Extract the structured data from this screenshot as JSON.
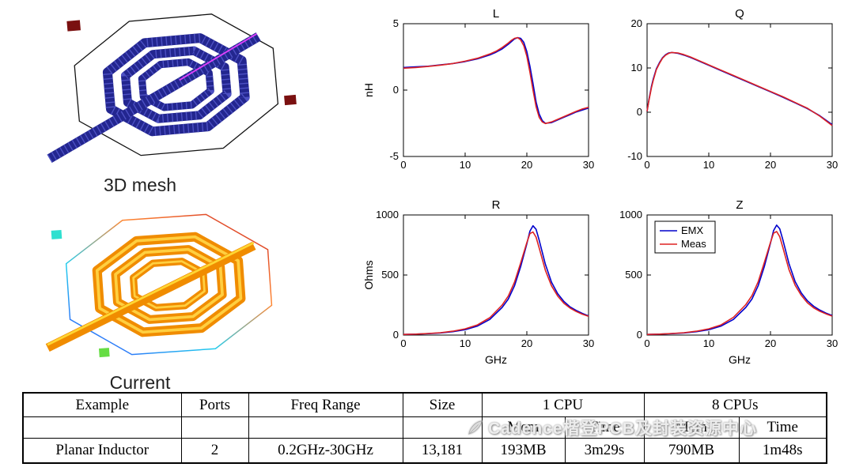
{
  "figures": {
    "mesh_label": "3D mesh",
    "current_label": "Current"
  },
  "chart_data": [
    {
      "type": "line",
      "title": "L",
      "xlabel": "",
      "ylabel": "nH",
      "xlim": [
        0,
        30
      ],
      "ylim": [
        -5,
        5
      ],
      "xticks": [
        0,
        10,
        20,
        30
      ],
      "yticks": [
        -5,
        0,
        5
      ],
      "legend": false,
      "x": [
        0,
        2,
        4,
        6,
        8,
        10,
        12,
        14,
        15,
        16,
        17,
        17.5,
        18,
        18.5,
        19,
        19.5,
        20,
        20.5,
        21,
        21.5,
        22,
        22.5,
        23,
        24,
        25,
        26,
        27,
        28,
        29,
        30
      ],
      "series": [
        {
          "name": "EMX",
          "color": "#0000cc",
          "y": [
            1.7,
            1.75,
            1.8,
            1.9,
            2.0,
            2.15,
            2.35,
            2.65,
            2.85,
            3.1,
            3.45,
            3.65,
            3.85,
            3.95,
            3.9,
            3.6,
            2.9,
            1.8,
            0.5,
            -0.9,
            -1.8,
            -2.3,
            -2.5,
            -2.45,
            -2.25,
            -2.05,
            -1.85,
            -1.65,
            -1.5,
            -1.35
          ]
        },
        {
          "name": "Meas",
          "color": "#dd2222",
          "y": [
            1.65,
            1.7,
            1.78,
            1.88,
            2.0,
            2.18,
            2.4,
            2.72,
            2.92,
            3.2,
            3.55,
            3.75,
            3.9,
            3.95,
            3.78,
            3.35,
            2.55,
            1.35,
            0.0,
            -1.25,
            -2.05,
            -2.4,
            -2.52,
            -2.4,
            -2.2,
            -2.0,
            -1.8,
            -1.6,
            -1.42,
            -1.3
          ]
        }
      ]
    },
    {
      "type": "line",
      "title": "Q",
      "xlabel": "",
      "ylabel": "",
      "xlim": [
        0,
        30
      ],
      "ylim": [
        -10,
        20
      ],
      "xticks": [
        0,
        10,
        20,
        30
      ],
      "yticks": [
        -10,
        0,
        10,
        20
      ],
      "legend": false,
      "x": [
        0,
        0.3,
        0.7,
        1,
        1.5,
        2,
        2.5,
        3,
        3.5,
        4,
        5,
        6,
        7,
        8,
        9,
        10,
        12,
        14,
        16,
        18,
        20,
        22,
        24,
        26,
        28,
        30
      ],
      "series": [
        {
          "name": "EMX",
          "color": "#0000cc",
          "y": [
            0.2,
            2.8,
            5.8,
            7.5,
            9.8,
            11.2,
            12.3,
            13.0,
            13.4,
            13.5,
            13.3,
            12.9,
            12.4,
            11.8,
            11.2,
            10.6,
            9.4,
            8.2,
            7.0,
            5.8,
            4.6,
            3.4,
            2.1,
            0.8,
            -0.8,
            -2.8
          ]
        },
        {
          "name": "Meas",
          "color": "#dd2222",
          "y": [
            0.2,
            2.6,
            5.5,
            7.2,
            9.6,
            11.0,
            12.2,
            12.9,
            13.3,
            13.5,
            13.4,
            13.0,
            12.5,
            11.9,
            11.3,
            10.7,
            9.5,
            8.3,
            7.1,
            5.9,
            4.7,
            3.5,
            2.2,
            0.9,
            -0.9,
            -3.0
          ]
        }
      ]
    },
    {
      "type": "line",
      "title": "R",
      "xlabel": "GHz",
      "ylabel": "Ohms",
      "xlim": [
        0,
        30
      ],
      "ylim": [
        0,
        1000
      ],
      "xticks": [
        0,
        10,
        20,
        30
      ],
      "yticks": [
        0,
        500,
        1000
      ],
      "legend": false,
      "x": [
        0,
        2,
        4,
        6,
        8,
        10,
        12,
        14,
        16,
        17,
        18,
        19,
        20,
        20.5,
        21,
        21.5,
        22,
        23,
        24,
        25,
        26,
        27,
        28,
        29,
        30
      ],
      "series": [
        {
          "name": "EMX",
          "color": "#0000cc",
          "y": [
            5,
            8,
            12,
            18,
            28,
            45,
            75,
            130,
            230,
            300,
            410,
            570,
            760,
            865,
            910,
            880,
            790,
            590,
            440,
            345,
            280,
            235,
            205,
            180,
            160
          ]
        },
        {
          "name": "Meas",
          "color": "#dd2222",
          "y": [
            5,
            8,
            13,
            20,
            32,
            52,
            85,
            145,
            250,
            325,
            440,
            600,
            770,
            845,
            858,
            815,
            725,
            540,
            410,
            325,
            265,
            225,
            196,
            174,
            156
          ]
        }
      ]
    },
    {
      "type": "line",
      "title": "Z",
      "xlabel": "GHz",
      "ylabel": "",
      "xlim": [
        0,
        30
      ],
      "ylim": [
        0,
        1000
      ],
      "xticks": [
        0,
        10,
        20,
        30
      ],
      "yticks": [
        0,
        500,
        1000
      ],
      "legend": true,
      "x": [
        0,
        2,
        4,
        6,
        8,
        10,
        12,
        14,
        16,
        17,
        18,
        19,
        20,
        20.5,
        21,
        21.5,
        22,
        23,
        24,
        25,
        26,
        27,
        28,
        29,
        30
      ],
      "series": [
        {
          "name": "EMX",
          "color": "#0000cc",
          "y": [
            5,
            8,
            12,
            18,
            28,
            45,
            75,
            130,
            230,
            300,
            410,
            570,
            765,
            870,
            915,
            885,
            795,
            595,
            445,
            350,
            285,
            240,
            208,
            183,
            163
          ]
        },
        {
          "name": "Meas",
          "color": "#dd2222",
          "y": [
            5,
            8,
            13,
            20,
            32,
            52,
            85,
            148,
            253,
            328,
            443,
            603,
            772,
            848,
            862,
            820,
            730,
            545,
            415,
            330,
            268,
            227,
            198,
            176,
            158
          ]
        }
      ]
    }
  ],
  "table": {
    "col_headers": [
      "Example",
      "Ports",
      "Freq Range",
      "Size",
      "1 CPU",
      "8 CPUs"
    ],
    "sub_headers": [
      "Mem",
      "Time",
      "Mem",
      "Time"
    ],
    "row": {
      "example": "Planar Inductor",
      "ports": "2",
      "freq_range": "0.2GHz-30GHz",
      "size": "13,181",
      "cpu1_mem": "193MB",
      "cpu1_time": "3m29s",
      "cpu8_mem": "790MB",
      "cpu8_time": "1m48s"
    }
  },
  "watermark": {
    "icon": "feather",
    "text": "Cadence楷登PCB及封装资源中心"
  }
}
